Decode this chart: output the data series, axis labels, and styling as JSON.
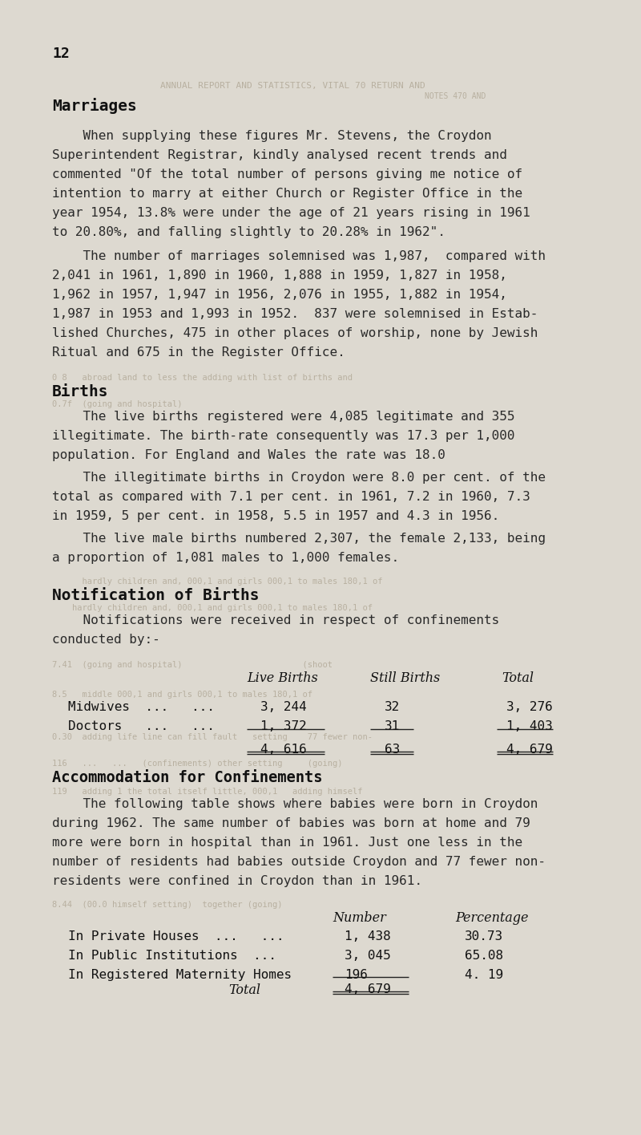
{
  "page_number": "12",
  "bg_color": "#ddd9d0",
  "text_color": "#2a2a2a",
  "heading_color": "#111111",
  "ghost_color": "#b8b0a0",
  "section1_heading": "Marriages",
  "ghost1": "ANNUAL REPORT AND STATISTICS, VITAL 70 RETURN AND",
  "ghost1b": "NOTES 470 AND",
  "para1_lines": [
    "    When supplying these figures Mr. Stevens, the Croydon",
    "Superintendent Registrar, kindly analysed recent trends and",
    "commented \"Of the total number of persons giving me notice of",
    "intention to marry at either Church or Register Office in the",
    "year 1954, 13.8% were under the age of 21 years rising in 1961",
    "to 20.80%, and falling slightly to 20.28% in 1962\"."
  ],
  "para2_lines": [
    "    The number of marriages solemnised was 1,987,  compared with",
    "2,041 in 1961, 1,890 in 1960, 1,888 in 1959, 1,827 in 1958,",
    "1,962 in 1957, 1,947 in 1956, 2,076 in 1955, 1,882 in 1954,",
    "1,987 in 1953 and 1,993 in 1952.  837 were solemnised in Estab-",
    "lished Churches, 475 in other places of worship, none by Jewish",
    "Ritual and 675 in the Register Office."
  ],
  "section2_heading": "Births",
  "ghost2": "0 8   abroad land to less the adding with list of births and",
  "ghost2b": "0.7f  (going and hospital)",
  "para3_lines": [
    "    The live births registered were 4,085 legitimate and 355",
    "illegitimate. The birth-rate consequently was 17.3 per 1,000",
    "population. For England and Wales the rate was 18.0"
  ],
  "para4_lines": [
    "    The illegitimate births in Croydon were 8.0 per cent. of the",
    "total as compared with 7.1 per cent. in 1961, 7.2 in 1960, 7.3",
    "in 1959, 5 per cent. in 1958, 5.5 in 1957 and 4.3 in 1956."
  ],
  "para5_lines": [
    "    The live male births numbered 2,307, the female 2,133, being",
    "a proportion of 1,081 males to 1,000 females."
  ],
  "section3_heading": "Notification of Births",
  "ghost3": "    hardly children and, 000,1 and girls 000,1 to males 180,1 of",
  "ghost3b": "    hardly children and, 000,1 and girls 000,1 to males 180,1 of",
  "para6_lines": [
    "    Notifications were received in respect of confinements",
    "conducted by:-"
  ],
  "ghost4": "7.41  (going and hospital)                        (shoot",
  "table1_col1": "Live Births",
  "table1_col2": "Still Births",
  "table1_col3": "Total",
  "ghost5": "8.5   middle 000,1 and girls 000,1 to males 180,1 of",
  "mid_label": "Midwives  ...   ...",
  "mid_live": "3, 244",
  "mid_still": "32",
  "mid_total": "3, 276",
  "doc_label": "Doctors   ...   ...",
  "doc_live": "1, 372",
  "doc_still": "31",
  "doc_total": "1, 403",
  "ghost6": "0.30  adding life line can fill fault   setting    77 fewer non-",
  "tot_live": "4, 616",
  "tot_still": "63",
  "tot_total": "4, 679",
  "ghost7": "116   ...   ...   (confinements) other setting     (going)",
  "section4_heading": "Accommodation for Confinements",
  "ghost8": "119   adding 1 the total itself little, 000,1   adding himself",
  "para7_lines": [
    "    The following table shows where babies were born in Croydon",
    "during 1962. The same number of babies was born at home and 79",
    "more were born in hospital than in 1961. Just one less in the",
    "number of residents had babies outside Croydon and 77 fewer non-",
    "residents were confined in Croydon than in 1961."
  ],
  "ghost9": "8.44  (00.0 himself setting)  together (going)",
  "table2_col1": "Number",
  "table2_col2": "Percentage",
  "row1_label": "In Private Houses  ...   ...",
  "row1_num": "1, 438",
  "row1_pct": "30.73",
  "row2_label": "In Public Institutions  ...",
  "row2_num": "3, 045",
  "row2_pct": "65.08",
  "row3_label": "In Registered Maternity Homes",
  "row3_num": "196",
  "row3_pct": "4. 19",
  "total_label": "Total",
  "total_num": "4, 679"
}
